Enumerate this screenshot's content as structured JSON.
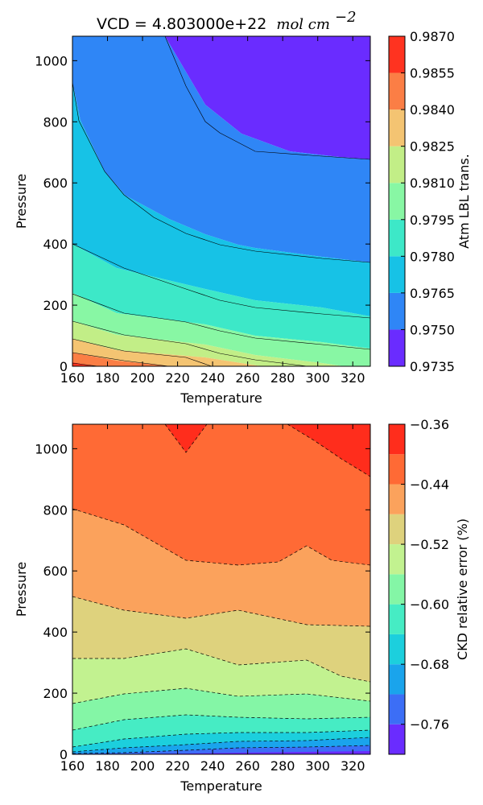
{
  "chart_data": [
    {
      "type": "contour",
      "title_prefix": "VCD = 4.803000e+22",
      "title_unit": "mol cm",
      "title_exponent": "−2",
      "xlabel": "Temperature",
      "ylabel": "Pressure",
      "xlim": [
        160,
        330
      ],
      "ylim": [
        0,
        1080
      ],
      "xticks": [
        "160",
        "180",
        "200",
        "220",
        "240",
        "260",
        "280",
        "300",
        "320"
      ],
      "yticks": [
        "0",
        "200",
        "400",
        "600",
        "800",
        "1000"
      ],
      "x": [
        160,
        165,
        180,
        190,
        210,
        225,
        250,
        260,
        295,
        330
      ],
      "colorbar": {
        "label": "Atm LBL trans.",
        "levels": [
          0.9735,
          0.975,
          0.9765,
          0.978,
          0.9795,
          0.981,
          0.9825,
          0.984,
          0.9855,
          0.987
        ],
        "tick_labels": [
          "0.9735",
          "0.9750",
          "0.9765",
          "0.9780",
          "0.9795",
          "0.9810",
          "0.9825",
          "0.9840",
          "0.9855",
          "0.9870"
        ],
        "colors": [
          "#6a2cff",
          "#2f86f6",
          "#17c2e6",
          "#3de8c8",
          "#88f7a4",
          "#c2ee87",
          "#f4c472",
          "#fb7e45",
          "#ff3320"
        ]
      },
      "contour_lines": [
        {
          "level": 0.975,
          "points": [
            [
              205,
              1080
            ],
            [
              225,
              915
            ],
            [
              250,
              805
            ],
            [
              260,
              760
            ],
            [
              295,
              700
            ],
            [
              330,
              675
            ]
          ]
        },
        {
          "level": 0.9765,
          "points": [
            [
              160,
              930
            ],
            [
              165,
              805
            ],
            [
              180,
              635
            ],
            [
              190,
              560
            ],
            [
              210,
              485
            ],
            [
              225,
              435
            ],
            [
              250,
              400
            ],
            [
              260,
              385
            ],
            [
              295,
              350
            ],
            [
              330,
              335
            ]
          ]
        },
        {
          "level": 0.978,
          "points": [
            [
              160,
              400
            ],
            [
              190,
              320
            ],
            [
              225,
              250
            ],
            [
              260,
              215
            ],
            [
              295,
              185
            ],
            [
              330,
              155
            ]
          ]
        },
        {
          "level": 0.9795,
          "points": [
            [
              160,
              240
            ],
            [
              190,
              175
            ],
            [
              225,
              140
            ],
            [
              260,
              105
            ],
            [
              295,
              80
            ],
            [
              330,
              55
            ]
          ]
        },
        {
          "level": 0.981,
          "points": [
            [
              160,
              145
            ],
            [
              190,
              105
            ],
            [
              225,
              75
            ],
            [
              260,
              40
            ],
            [
              295,
              10
            ],
            [
              310,
              0
            ]
          ]
        },
        {
          "level": 0.9825,
          "points": [
            [
              160,
              90
            ],
            [
              190,
              55
            ],
            [
              225,
              30
            ],
            [
              250,
              0
            ]
          ]
        },
        {
          "level": 0.984,
          "points": [
            [
              160,
              45
            ],
            [
              190,
              20
            ],
            [
              210,
              0
            ]
          ]
        },
        {
          "level": 0.9855,
          "points": [
            [
              160,
              12
            ],
            [
              175,
              0
            ]
          ]
        }
      ]
    },
    {
      "type": "contour",
      "title_prefix": "",
      "xlabel": "Temperature",
      "ylabel": "Pressure",
      "xlim": [
        160,
        330
      ],
      "ylim": [
        0,
        1080
      ],
      "xticks": [
        "160",
        "180",
        "200",
        "220",
        "240",
        "260",
        "280",
        "300",
        "320"
      ],
      "yticks": [
        "0",
        "200",
        "400",
        "600",
        "800",
        "1000"
      ],
      "colorbar": {
        "label": "CKD relative error (%)",
        "levels": [
          -0.8,
          -0.76,
          -0.72,
          -0.68,
          -0.64,
          -0.6,
          -0.56,
          -0.52,
          -0.48,
          -0.44,
          -0.4,
          -0.36
        ],
        "tick_labels": [
          "−0.76",
          "−0.68",
          "−0.60",
          "−0.52",
          "−0.44",
          "−0.36"
        ],
        "tick_values": [
          -0.76,
          -0.68,
          -0.6,
          -0.52,
          -0.44,
          -0.36
        ],
        "colors": [
          "#6a2cff",
          "#3c6ef6",
          "#1aa4ec",
          "#1ccfdd",
          "#46ecc4",
          "#84f6a6",
          "#c2f290",
          "#ded27d",
          "#fba25c",
          "#ff6a35",
          "#ff2d1c"
        ]
      },
      "contour_lines": [
        {
          "level": -0.4,
          "points": [
            [
              212,
              1080
            ],
            [
              225,
              985
            ],
            [
              238,
              1080
            ]
          ]
        },
        {
          "level": -0.4,
          "points": [
            [
              280,
              1080
            ],
            [
              300,
              1025
            ],
            [
              330,
              905
            ]
          ]
        },
        {
          "level": -0.44,
          "points": [
            [
              160,
              795
            ],
            [
              190,
              745
            ],
            [
              225,
              630
            ],
            [
              260,
              615
            ],
            [
              280,
              630
            ],
            [
              295,
              680
            ],
            [
              315,
              630
            ],
            [
              330,
              620
            ]
          ]
        },
        {
          "level": -0.48,
          "points": [
            [
              160,
              515
            ],
            [
              190,
              470
            ],
            [
              225,
              445
            ],
            [
              260,
              470
            ],
            [
              295,
              425
            ],
            [
              330,
              420
            ]
          ]
        },
        {
          "level": -0.52,
          "points": [
            [
              160,
              310
            ],
            [
              190,
              310
            ],
            [
              225,
              345
            ],
            [
              260,
              290
            ],
            [
              295,
              305
            ],
            [
              330,
              235
            ]
          ]
        },
        {
          "level": -0.56,
          "points": [
            [
              160,
              170
            ],
            [
              190,
              195
            ],
            [
              225,
              215
            ],
            [
              260,
              190
            ],
            [
              295,
              195
            ],
            [
              330,
              175
            ]
          ]
        },
        {
          "level": -0.6,
          "points": [
            [
              160,
              80
            ],
            [
              190,
              115
            ],
            [
              225,
              130
            ],
            [
              260,
              120
            ],
            [
              295,
              115
            ],
            [
              330,
              120
            ]
          ]
        },
        {
          "level": -0.64,
          "points": [
            [
              160,
              25
            ],
            [
              190,
              50
            ],
            [
              225,
              65
            ],
            [
              260,
              70
            ],
            [
              295,
              70
            ],
            [
              330,
              80
            ]
          ]
        },
        {
          "level": -0.68,
          "points": [
            [
              160,
              8
            ],
            [
              190,
              20
            ],
            [
              225,
              30
            ],
            [
              260,
              40
            ],
            [
              295,
              45
            ],
            [
              330,
              55
            ]
          ]
        },
        {
          "level": -0.72,
          "points": [
            [
              160,
              2
            ],
            [
              190,
              6
            ],
            [
              225,
              12
            ],
            [
              260,
              20
            ],
            [
              295,
              25
            ],
            [
              330,
              30
            ]
          ]
        },
        {
          "level": -0.76,
          "points": [
            [
              160,
              0
            ],
            [
              225,
              3
            ],
            [
              260,
              6
            ],
            [
              295,
              8
            ],
            [
              330,
              10
            ]
          ]
        }
      ]
    }
  ]
}
